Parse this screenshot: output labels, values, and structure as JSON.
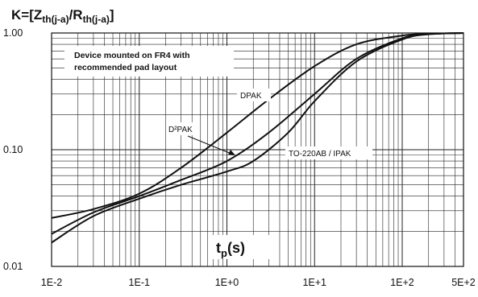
{
  "chart_data": {
    "type": "line",
    "title": {
      "main": "K=[Z",
      "s1": "th(j-a)",
      "mid": "/R",
      "s2": "th(j-a)",
      "end": "]"
    },
    "xlabel": {
      "main": "t",
      "sub": "p",
      "end": "(s)"
    },
    "xscale": "log",
    "yscale": "log",
    "xlim": [
      0.01,
      500
    ],
    "ylim": [
      0.01,
      1.0
    ],
    "x_tick_labels": [
      "1E-2",
      "1E-1",
      "1E+0",
      "1E+1",
      "1E+2",
      "5E+2"
    ],
    "y_tick_labels": [
      "1.00",
      "0.10",
      "0.01"
    ],
    "grid": true,
    "annotation": [
      "Device mounted on FR4 with",
      "recommended pad layout"
    ],
    "series": [
      {
        "name": "DPAK",
        "x": [
          0.01,
          0.03,
          0.1,
          0.3,
          1,
          3,
          10,
          30,
          100,
          200,
          500
        ],
        "values": [
          0.026,
          0.031,
          0.042,
          0.07,
          0.14,
          0.27,
          0.52,
          0.8,
          0.95,
          0.985,
          1.0
        ]
      },
      {
        "name": "D²PAK",
        "x": [
          0.01,
          0.03,
          0.1,
          0.3,
          1,
          3,
          10,
          30,
          100,
          200,
          500
        ],
        "values": [
          0.019,
          0.029,
          0.04,
          0.055,
          0.08,
          0.14,
          0.3,
          0.6,
          0.9,
          0.98,
          1.0
        ]
      },
      {
        "name": "TO-220AB / IPAK",
        "x": [
          0.01,
          0.03,
          0.1,
          0.3,
          1,
          2,
          5,
          10,
          30,
          100,
          200,
          500
        ],
        "values": [
          0.016,
          0.027,
          0.038,
          0.05,
          0.065,
          0.08,
          0.14,
          0.26,
          0.57,
          0.88,
          0.975,
          1.0
        ]
      }
    ]
  }
}
